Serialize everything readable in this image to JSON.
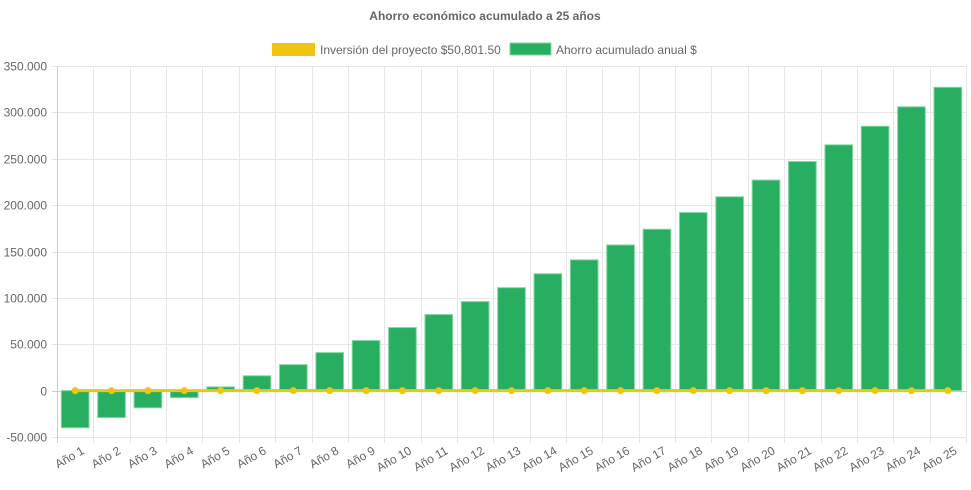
{
  "chart_data": {
    "type": "bar",
    "title": "Ahorro económico acumulado a 25 años",
    "xlabel": "",
    "ylabel": "",
    "ylim": [
      -50000,
      350000
    ],
    "ytick_step": 50000,
    "yticks": [
      "-50.000",
      "0",
      "50.000",
      "100.000",
      "150.000",
      "200.000",
      "250.000",
      "300.000",
      "350.000"
    ],
    "grid": true,
    "legend_position": "top",
    "categories": [
      "Año 1",
      "Año 2",
      "Año 3",
      "Año 4",
      "Año 5",
      "Año 6",
      "Año 7",
      "Año 8",
      "Año 9",
      "Año 10",
      "Año 11",
      "Año 12",
      "Año 13",
      "Año 14",
      "Año 15",
      "Año 16",
      "Año 17",
      "Año 18",
      "Año 19",
      "Año 20",
      "Año 21",
      "Año 22",
      "Año 23",
      "Año 24",
      "Año 25"
    ],
    "series": [
      {
        "name": "Inversión del proyecto $50,801.50",
        "type": "line",
        "color": "#f1c40f",
        "values": [
          0,
          0,
          0,
          0,
          0,
          0,
          0,
          0,
          0,
          0,
          0,
          0,
          0,
          0,
          0,
          0,
          0,
          0,
          0,
          0,
          0,
          0,
          0,
          0,
          0
        ]
      },
      {
        "name": "Ahorro acumulado anual $",
        "type": "bar",
        "color": "#27ae60",
        "values": [
          -40000,
          -29000,
          -18500,
          -7500,
          4000,
          16000,
          28000,
          41000,
          54000,
          68000,
          82000,
          96000,
          111000,
          126000,
          141000,
          157000,
          174000,
          192000,
          209000,
          227000,
          247000,
          265000,
          285000,
          306000,
          327000
        ]
      }
    ]
  }
}
